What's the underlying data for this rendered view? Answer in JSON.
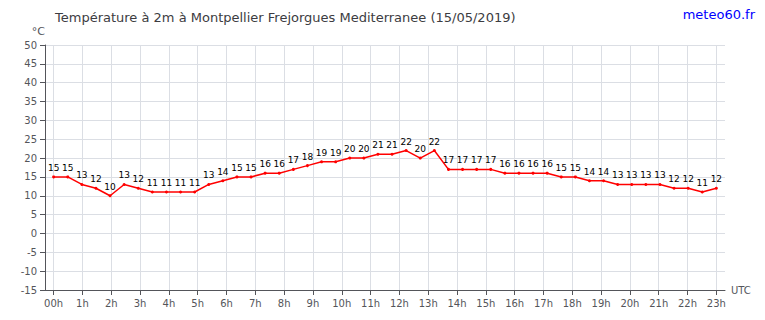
{
  "chart_data": {
    "type": "line",
    "title": "Température à 2m à Montpellier Frejorgues Mediterranee (15/05/2019)",
    "ylabel": "°C",
    "xlabel": "UTC",
    "annotations": [
      {
        "text": "meteo60.fr",
        "color": "#0000ff"
      }
    ],
    "x": [
      0,
      0.4894,
      0.9787,
      1.4681,
      1.9574,
      2.4468,
      2.9362,
      3.4255,
      3.9149,
      4.4043,
      4.8936,
      5.383,
      5.8723,
      6.3617,
      6.8511,
      7.3404,
      7.8298,
      8.3191,
      8.8085,
      9.2979,
      9.7872,
      10.2766,
      10.766,
      11.2553,
      11.7447,
      12.234,
      12.7234,
      13.2128,
      13.7021,
      14.1915,
      14.6809,
      15.1702,
      15.6596,
      16.1489,
      16.6383,
      17.1277,
      17.617,
      18.1064,
      18.5957,
      19.0851,
      19.5745,
      20.0638,
      20.5532,
      21.0426,
      21.5319,
      22.0213,
      22.5106,
      23
    ],
    "values": [
      15,
      15,
      13,
      12,
      10,
      13,
      12,
      11,
      11,
      11,
      11,
      13,
      14,
      15,
      15,
      16,
      16,
      17,
      18,
      19,
      19,
      20,
      20,
      21,
      21,
      22,
      20,
      22,
      17,
      17,
      17,
      17,
      16,
      16,
      16,
      16,
      15,
      15,
      14,
      14,
      13,
      13,
      13,
      13,
      12,
      12,
      11,
      12
    ],
    "color": "red",
    "data_labels": true,
    "grid": true,
    "xlim": [
      -0.3,
      23.3
    ],
    "xticks": [
      {
        "value": 0,
        "label": "00h"
      },
      {
        "value": 1,
        "label": "1h"
      },
      {
        "value": 2,
        "label": "2h"
      },
      {
        "value": 3,
        "label": "3h"
      },
      {
        "value": 4,
        "label": "4h"
      },
      {
        "value": 5,
        "label": "5h"
      },
      {
        "value": 6,
        "label": "6h"
      },
      {
        "value": 7,
        "label": "7h"
      },
      {
        "value": 8,
        "label": "8h"
      },
      {
        "value": 9,
        "label": "9h"
      },
      {
        "value": 10,
        "label": "10h"
      },
      {
        "value": 11,
        "label": "11h"
      },
      {
        "value": 12,
        "label": "12h"
      },
      {
        "value": 13,
        "label": "13h"
      },
      {
        "value": 14,
        "label": "14h"
      },
      {
        "value": 15,
        "label": "15h"
      },
      {
        "value": 16,
        "label": "16h"
      },
      {
        "value": 17,
        "label": "17h"
      },
      {
        "value": 18,
        "label": "18h"
      },
      {
        "value": 19,
        "label": "19h"
      },
      {
        "value": 20,
        "label": "20h"
      },
      {
        "value": 21,
        "label": "21h"
      },
      {
        "value": 22,
        "label": "22h"
      },
      {
        "value": 23,
        "label": "23h"
      }
    ],
    "ylim": [
      -15,
      50
    ],
    "yticks": [
      -15,
      -10,
      -5,
      0,
      5,
      10,
      15,
      20,
      25,
      30,
      35,
      40,
      45,
      50
    ]
  }
}
